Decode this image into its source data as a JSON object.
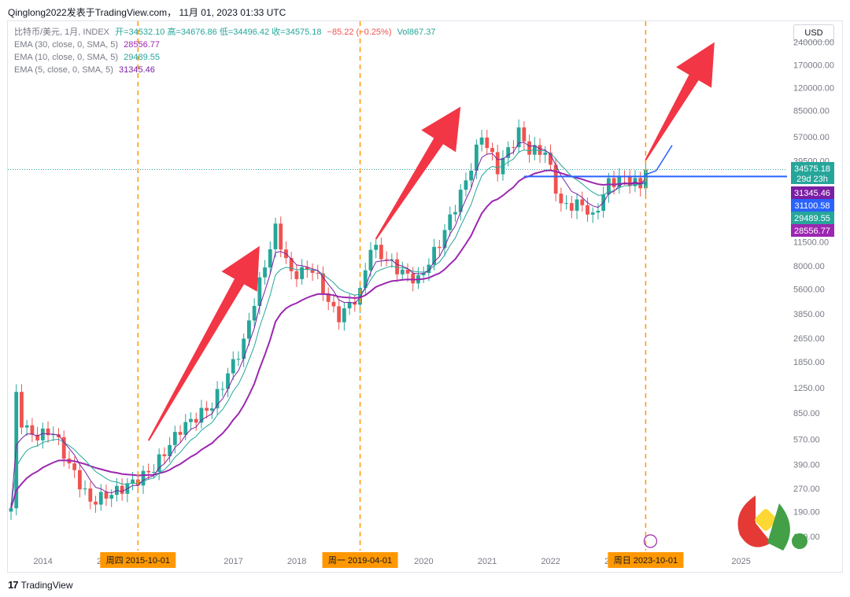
{
  "header": {
    "title": "Qinglong2022发表于TradingView.com， 11月 01, 2023 01:33 UTC"
  },
  "legend": {
    "symbol": "比特币/美元, 1月, INDEX",
    "ohlc": "开=34532.10 高=34676.86 低=34496.42 收=34575.18",
    "change": "−85.22 (−0.25%)",
    "volume": "Vol867.37",
    "ema30_label": "EMA (30, close, 0, SMA, 5)",
    "ema30_value": "28556.77",
    "ema10_label": "EMA (10, close, 0, SMA, 5)",
    "ema10_value": "29489.55",
    "ema5_label": "EMA (5, close, 0, SMA, 5)",
    "ema5_value": "31345.46"
  },
  "currency_button": "USD",
  "footer": {
    "brand": "TradingView"
  },
  "colors": {
    "up": "#26a69a",
    "down": "#ef5350",
    "ema30": "#9c27b0",
    "ema10": "#26a69a",
    "ema5": "#7b1fa2",
    "vline": "#ff9800",
    "arrow": "#f23645",
    "hline": "#2962ff"
  },
  "chart_data": {
    "type": "candlestick",
    "y_scale": "log",
    "ylim": [
      105,
      330000
    ],
    "y_ticks": [
      "240000.00",
      "170000.00",
      "120000.00",
      "85000.00",
      "57000.00",
      "39500.00",
      "11500.00",
      "8000.00",
      "5600.00",
      "3850.00",
      "2650.00",
      "1850.00",
      "1250.00",
      "850.00",
      "570.00",
      "390.00",
      "270.00",
      "190.00",
      "130.00"
    ],
    "x_labels": [
      "2014",
      "2015",
      "2017",
      "2018",
      "2020",
      "2021",
      "2022",
      "2023",
      "2025"
    ],
    "vertical_markers": [
      {
        "label": "周四 2015-10-01",
        "date": "2015-10-01"
      },
      {
        "label": "周一 2019-04-01",
        "date": "2019-04-01"
      },
      {
        "label": "周日 2023-10-01",
        "date": "2023-10-01"
      }
    ],
    "price_badges": [
      {
        "text": "34575.18",
        "sub": "29d 23h",
        "color": "#26a69a"
      },
      {
        "text": "31345.46",
        "color": "#7b1fa2"
      },
      {
        "text": "31100.58",
        "color": "#2962ff"
      },
      {
        "text": "29489.55",
        "color": "#26a69a"
      },
      {
        "text": "28556.77",
        "color": "#9c27b0"
      }
    ],
    "horizontal_line": 31100.58,
    "monthly_close_anchors": [
      [
        "2013-10-01",
        200
      ],
      [
        "2013-11-01",
        1100
      ],
      [
        "2013-12-01",
        750
      ],
      [
        "2014-02-01",
        600
      ],
      [
        "2014-06-01",
        640
      ],
      [
        "2014-09-01",
        390
      ],
      [
        "2015-01-01",
        220
      ],
      [
        "2015-06-01",
        260
      ],
      [
        "2015-10-01",
        310
      ],
      [
        "2016-01-01",
        370
      ],
      [
        "2016-06-01",
        670
      ],
      [
        "2016-12-01",
        960
      ],
      [
        "2017-06-01",
        2500
      ],
      [
        "2017-08-01",
        4700
      ],
      [
        "2017-12-01",
        14000
      ],
      [
        "2018-03-01",
        7000
      ],
      [
        "2018-07-01",
        7700
      ],
      [
        "2018-11-01",
        4000
      ],
      [
        "2018-12-01",
        3700
      ],
      [
        "2019-04-01",
        5300
      ],
      [
        "2019-06-01",
        10800
      ],
      [
        "2019-12-01",
        7200
      ],
      [
        "2020-03-01",
        6400
      ],
      [
        "2020-07-01",
        11300
      ],
      [
        "2020-12-01",
        29000
      ],
      [
        "2021-03-01",
        58800
      ],
      [
        "2021-06-01",
        35000
      ],
      [
        "2021-10-01",
        61300
      ],
      [
        "2021-12-01",
        46300
      ],
      [
        "2022-03-01",
        45500
      ],
      [
        "2022-06-01",
        19900
      ],
      [
        "2022-10-01",
        20500
      ],
      [
        "2022-12-01",
        16500
      ],
      [
        "2023-03-01",
        28400
      ],
      [
        "2023-06-01",
        30400
      ],
      [
        "2023-09-01",
        26900
      ],
      [
        "2023-10-01",
        34575
      ]
    ]
  }
}
